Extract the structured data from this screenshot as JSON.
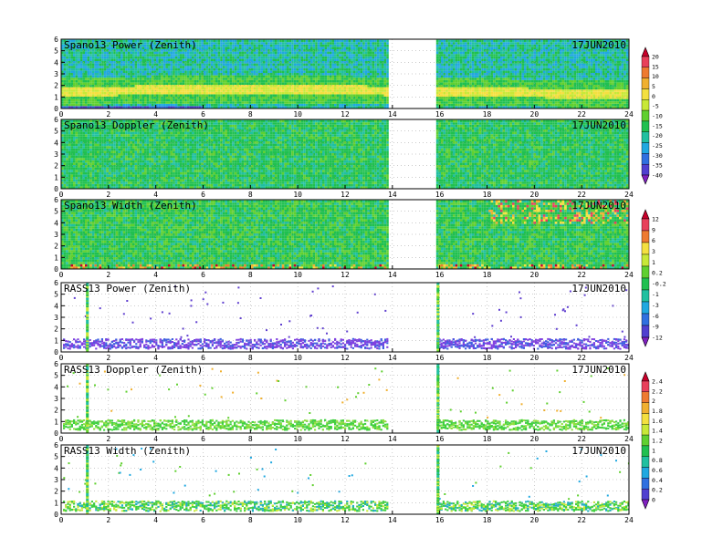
{
  "chart_data": {
    "type": "heatmap",
    "x_ticks": [
      "0",
      "2",
      "4",
      "6",
      "8",
      "10",
      "12",
      "14",
      "16",
      "18",
      "20",
      "22",
      "24"
    ],
    "y_ticks": [
      "0",
      "1",
      "2",
      "3",
      "4",
      "5",
      "6"
    ],
    "xlim": [
      0,
      24
    ],
    "ylim": [
      0,
      6
    ],
    "data_gap_hours": [
      13.75,
      15.85
    ],
    "grid": true,
    "date_label": "17JUN2010",
    "panels": [
      {
        "title": "Spano13 Power (Zenith)",
        "style": "dense",
        "scale": 0
      },
      {
        "title": "Spano13 Doppler (Zenith)",
        "style": "dense",
        "scale": 0
      },
      {
        "title": "Spano13 Width (Zenith)",
        "style": "dense",
        "scale": 1
      },
      {
        "title": "RASS13 Power (Zenith)",
        "style": "sparse",
        "scale": 1
      },
      {
        "title": "RASS13 Doppler (Zenith)",
        "style": "sparse",
        "scale": 2
      },
      {
        "title": "RASS13 Width (Zenith)",
        "style": "sparse",
        "scale": 2
      }
    ],
    "colorbars": [
      {
        "labels": [
          "20",
          "15",
          "10",
          "5",
          "0",
          "-5",
          "-10",
          "-15",
          "-20",
          "-25",
          "-30",
          "-35",
          "-40"
        ],
        "colors": [
          "#c8002a",
          "#e8405a",
          "#ee7a30",
          "#f0b030",
          "#f4e040",
          "#c8e838",
          "#60d030",
          "#20c050",
          "#20c0a0",
          "#20a8e0",
          "#3070e0",
          "#5040d0",
          "#8020c0"
        ]
      },
      {
        "labels": [
          "12",
          "9",
          "6",
          "3",
          "1",
          "0.2",
          "-0.2",
          "-1",
          "-3",
          "-6",
          "-9",
          "-12"
        ],
        "colors": [
          "#c8002a",
          "#e8405a",
          "#ee7a30",
          "#f4e040",
          "#c8e838",
          "#60d030",
          "#20c050",
          "#20c0a0",
          "#20a8e0",
          "#3070e0",
          "#5040d0",
          "#8020c0"
        ]
      },
      {
        "labels": [
          "2.4",
          "2.2",
          "2",
          "1.8",
          "1.6",
          "1.4",
          "1.2",
          "1",
          "0.8",
          "0.6",
          "0.4",
          "0.2",
          "0"
        ],
        "colors": [
          "#c8002a",
          "#e8405a",
          "#ee7a30",
          "#f0b030",
          "#f4e040",
          "#c8e838",
          "#60d030",
          "#20c050",
          "#20c0a0",
          "#20a8e0",
          "#3070e0",
          "#5040d0",
          "#8020c0"
        ]
      }
    ]
  }
}
